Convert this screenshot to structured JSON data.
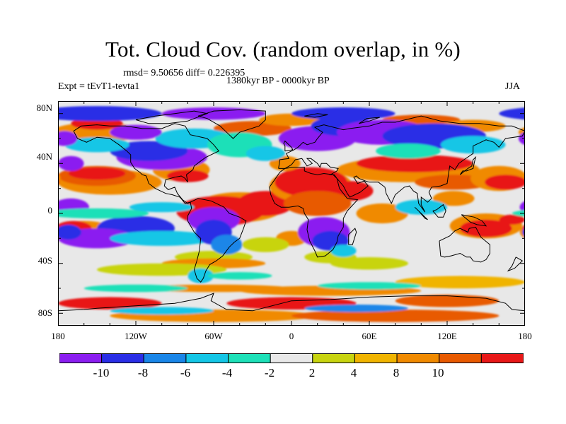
{
  "title": "Tot. Cloud Cov. (random overlap, in %)",
  "stats": "rmsd= 9.50656  diff= 0.226395",
  "period": "1380kyr BP - 0000kyr BP",
  "experiment": "Expt = tEvT1-tevta1",
  "season": "JJA",
  "y_axis_labels": [
    "80N",
    "40N",
    "0",
    "40S",
    "80S"
  ],
  "x_axis_labels": [
    "180",
    "120W",
    "60W",
    "0",
    "60E",
    "120E",
    "180"
  ],
  "colorbar": {
    "labels": [
      "-10",
      "-8",
      "-6",
      "-4",
      "-2",
      "2",
      "4",
      "8",
      "10"
    ],
    "colors": [
      "#8b1ef0",
      "#2a2ee6",
      "#1a86e8",
      "#14c6e6",
      "#1ee0b8",
      "#e8e8e8",
      "#c8d410",
      "#f0b400",
      "#f08a00",
      "#e85a00",
      "#e81818"
    ]
  }
}
